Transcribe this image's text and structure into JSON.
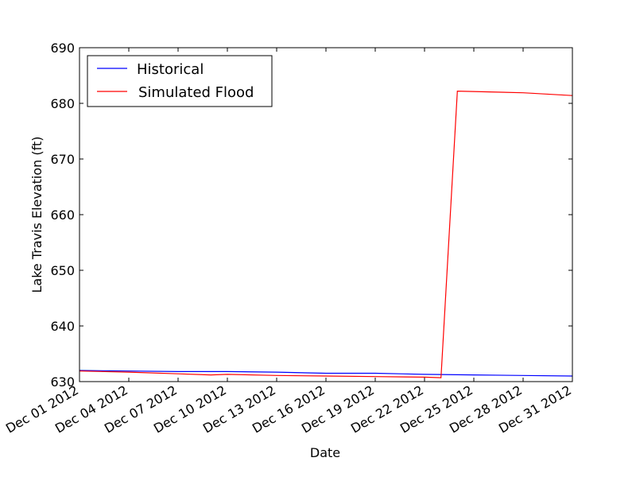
{
  "chart_data": {
    "type": "line",
    "title": "",
    "xlabel": "Date",
    "ylabel": "Lake Travis Elevation (ft)",
    "x_tick_labels": [
      "Dec 01 2012",
      "Dec 04 2012",
      "Dec 07 2012",
      "Dec 10 2012",
      "Dec 13 2012",
      "Dec 16 2012",
      "Dec 19 2012",
      "Dec 22 2012",
      "Dec 25 2012",
      "Dec 28 2012",
      "Dec 31 2012"
    ],
    "xlim": [
      "2012-12-01",
      "2012-12-31"
    ],
    "ylim": [
      630,
      690
    ],
    "y_ticks": [
      630,
      640,
      650,
      660,
      670,
      680,
      690
    ],
    "grid": false,
    "legend_position": "top-left",
    "series": [
      {
        "name": "Historical",
        "color": "#0000ff",
        "x": [
          "2012-12-01",
          "2012-12-04",
          "2012-12-07",
          "2012-12-10",
          "2012-12-13",
          "2012-12-16",
          "2012-12-19",
          "2012-12-22",
          "2012-12-25",
          "2012-12-28",
          "2012-12-31"
        ],
        "y": [
          632.0,
          631.9,
          631.8,
          631.8,
          631.7,
          631.5,
          631.5,
          631.3,
          631.2,
          631.1,
          631.0
        ]
      },
      {
        "name": "Simulated Flood",
        "color": "#ff0000",
        "x": [
          "2012-12-01",
          "2012-12-04",
          "2012-12-07",
          "2012-12-09",
          "2012-12-10",
          "2012-12-13",
          "2012-12-16",
          "2012-12-19",
          "2012-12-22",
          "2012-12-23",
          "2012-12-24",
          "2012-12-28",
          "2012-12-31"
        ],
        "y": [
          631.9,
          631.7,
          631.4,
          631.2,
          631.3,
          631.1,
          631.0,
          630.9,
          630.8,
          630.7,
          682.2,
          681.9,
          681.4
        ]
      }
    ]
  }
}
